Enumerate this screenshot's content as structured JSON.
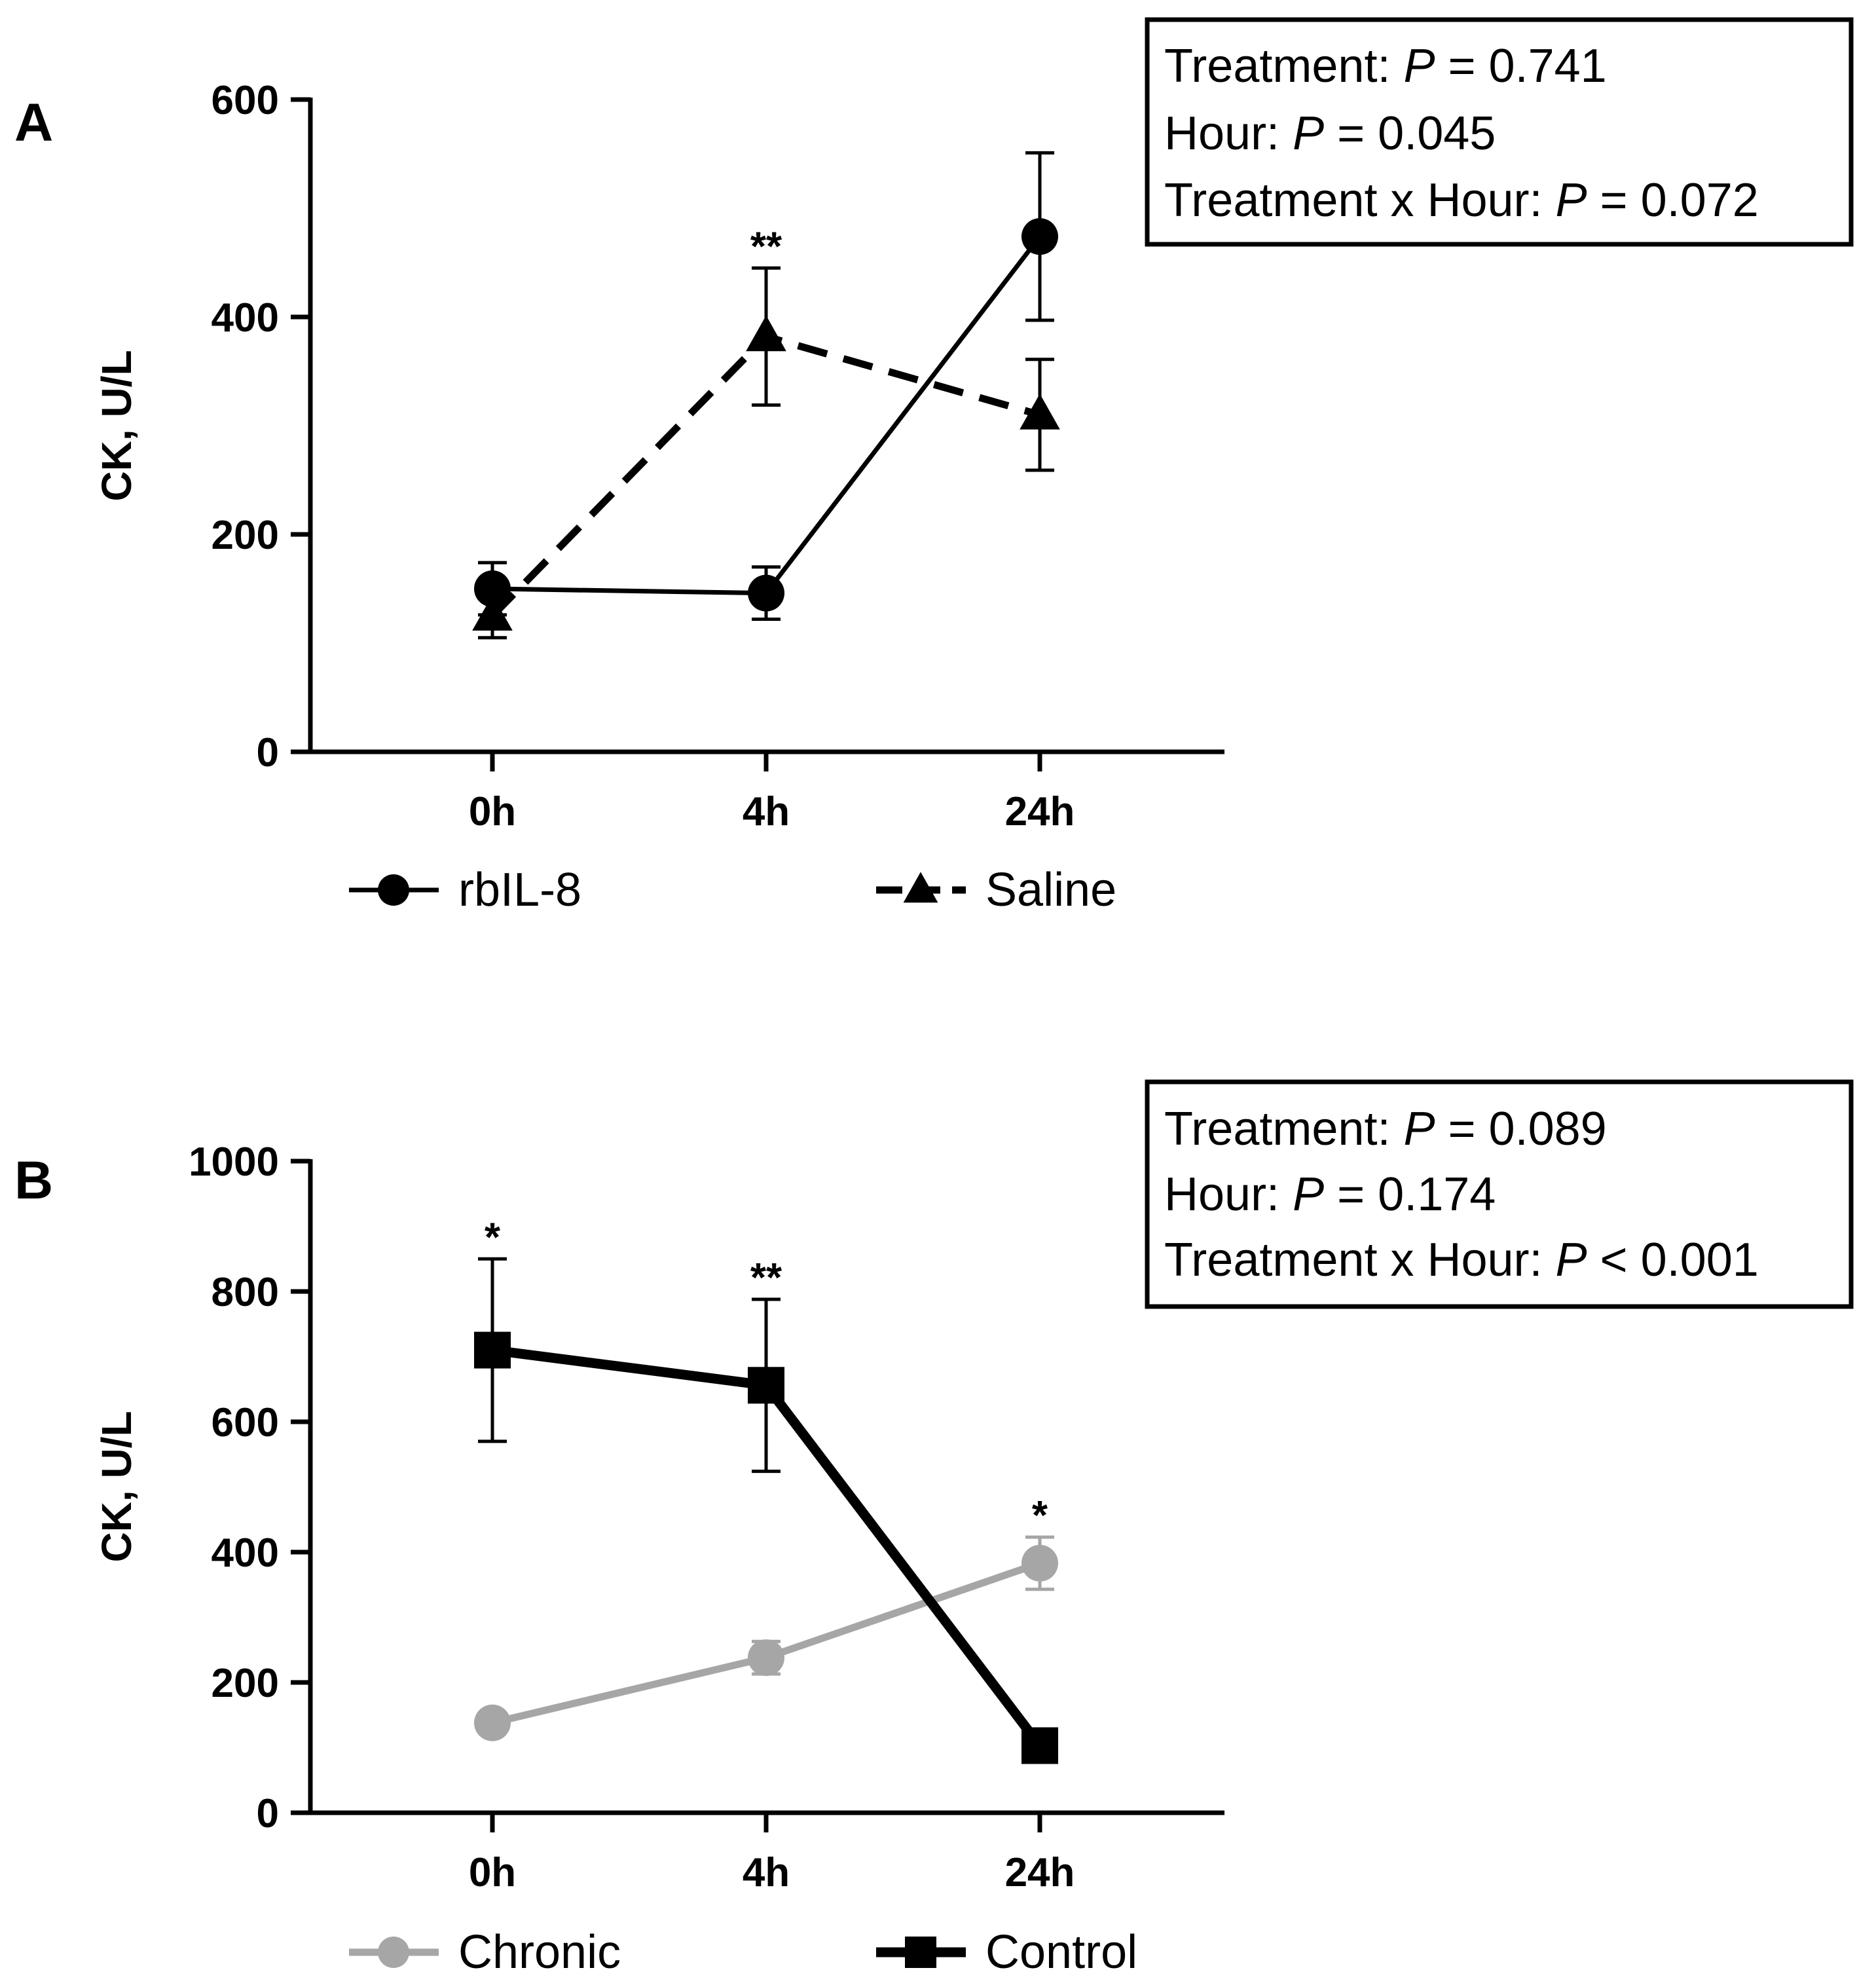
{
  "chart_data": [
    {
      "type": "line",
      "panel_label": "A",
      "categories": [
        "0h",
        "4h",
        "24h"
      ],
      "ylabel": "CK, U/L",
      "ylim": [
        0,
        600
      ],
      "yticks": [
        "0",
        "200",
        "400",
        "600"
      ],
      "series": [
        {
          "name": "rbIL-8",
          "marker": "circle",
          "line": "solid",
          "color": "#000000",
          "values": [
            150,
            146,
            474
          ],
          "errors": [
            24,
            24,
            77
          ]
        },
        {
          "name": "Saline",
          "marker": "triangle",
          "line": "dashed",
          "color": "#000000",
          "values": [
            125,
            382,
            310
          ],
          "errors": [
            20,
            63,
            51
          ]
        }
      ],
      "annotations": [
        {
          "category": "4h",
          "text": "**"
        }
      ],
      "stats": [
        {
          "prefix": "Treatment: ",
          "p": "P",
          "rest": " = 0.741"
        },
        {
          "prefix": "Hour: ",
          "p": "P",
          "rest": " = 0.045"
        },
        {
          "prefix": "Treatment x Hour: ",
          "p": "P",
          "rest": " = 0.072"
        }
      ]
    },
    {
      "type": "line",
      "panel_label": "B",
      "categories": [
        "0h",
        "4h",
        "24h"
      ],
      "ylabel": "CK, U/L",
      "ylim": [
        0,
        1000
      ],
      "yticks": [
        "0",
        "200",
        "400",
        "600",
        "800",
        "1000"
      ],
      "series": [
        {
          "name": "Chronic",
          "marker": "circle",
          "line": "solid",
          "color": "#a6a6a6",
          "values": [
            138,
            238,
            383
          ],
          "errors": [
            0,
            25,
            40
          ]
        },
        {
          "name": "Control",
          "marker": "square",
          "line": "solid",
          "color": "#000000",
          "values": [
            710,
            656,
            103
          ],
          "errors": [
            140,
            132,
            0
          ]
        }
      ],
      "annotations": [
        {
          "category": "0h",
          "text": "*"
        },
        {
          "category": "4h",
          "text": "**"
        },
        {
          "category": "24h",
          "text": "*"
        }
      ],
      "stats": [
        {
          "prefix": "Treatment: ",
          "p": "P",
          "rest": " = 0.089"
        },
        {
          "prefix": "Hour: ",
          "p": "P",
          "rest": " = 0.174"
        },
        {
          "prefix": "Treatment x Hour: ",
          "p": "P",
          "rest": " < 0.001"
        }
      ]
    }
  ]
}
